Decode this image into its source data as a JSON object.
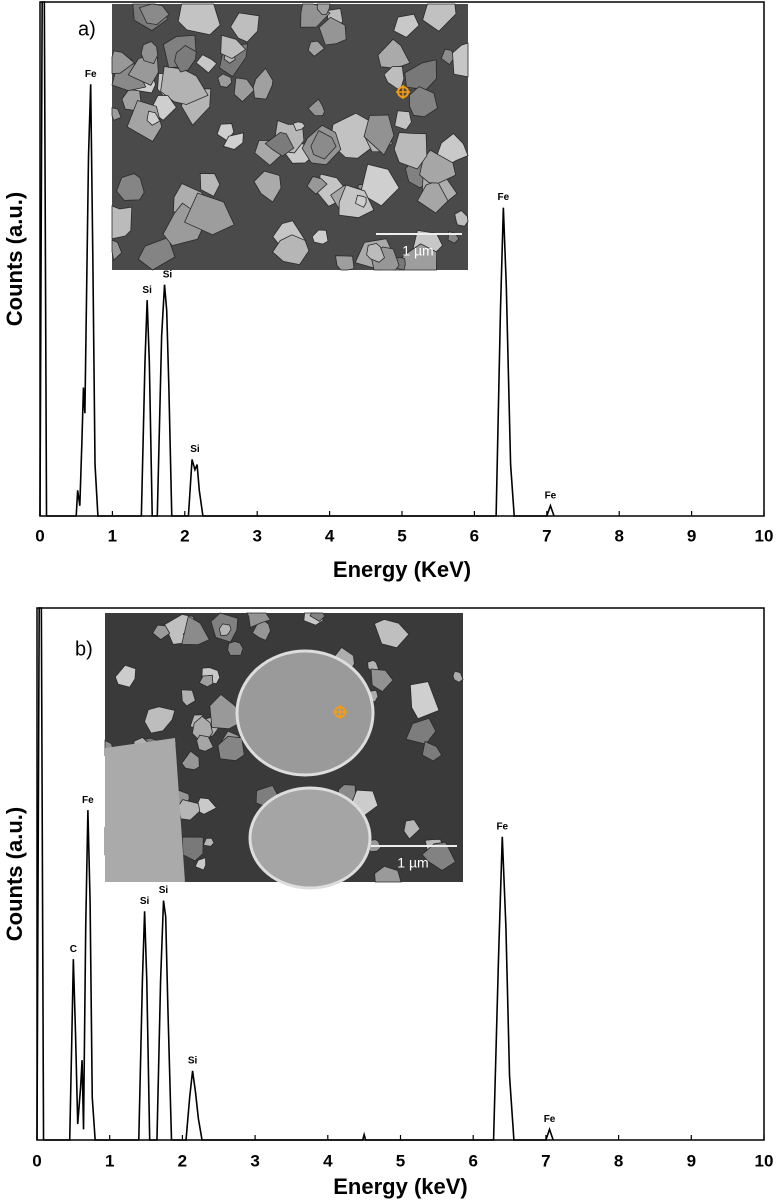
{
  "chart_data": [
    {
      "type": "line",
      "panel_label": "a)",
      "x_label": "Energy (KeV)",
      "y_label": "Counts (a.u.)",
      "color": "#000000",
      "inset": {
        "scale_label": "1 µm"
      },
      "xlim": [
        0,
        10
      ],
      "xticks": [
        0,
        1,
        2,
        3,
        4,
        5,
        6,
        7,
        8,
        9,
        10
      ],
      "ylim": [
        0,
        100
      ],
      "x": [
        0,
        0.03,
        0.06,
        0.09,
        0.5,
        0.52,
        0.55,
        0.58,
        0.6,
        0.62,
        0.64,
        0.67,
        0.7,
        0.73,
        0.76,
        0.8,
        1.4,
        1.45,
        1.48,
        1.51,
        1.55,
        1.62,
        1.68,
        1.72,
        1.75,
        1.78,
        1.82,
        2.05,
        2.1,
        2.14,
        2.17,
        2.2,
        2.25,
        6.3,
        6.36,
        6.4,
        6.44,
        6.5,
        6.55,
        7.0,
        7.05,
        7.1
      ],
      "values": [
        0,
        100,
        100,
        0,
        0,
        5,
        2,
        15,
        25,
        20,
        40,
        70,
        84,
        50,
        10,
        0,
        0,
        30,
        42,
        30,
        0,
        0,
        35,
        45,
        40,
        25,
        0,
        0,
        11,
        9,
        10,
        5,
        0,
        0,
        40,
        60,
        45,
        10,
        0,
        0,
        2,
        0
      ],
      "peak_labels": [
        {
          "text": "Fe",
          "x": 0.7,
          "y": 84
        },
        {
          "text": "Si",
          "x": 1.48,
          "y": 42
        },
        {
          "text": "Si",
          "x": 1.76,
          "y": 45
        },
        {
          "text": "Si",
          "x": 2.14,
          "y": 11
        },
        {
          "text": "Fe",
          "x": 6.4,
          "y": 60
        },
        {
          "text": "Fe",
          "x": 7.05,
          "y": 2
        }
      ]
    },
    {
      "type": "line",
      "panel_label": "b)",
      "x_label": "Energy (keV)",
      "y_label": "Counts (a.u.)",
      "color": "#000000",
      "inset": {
        "scale_label": "1 µm"
      },
      "xlim": [
        0,
        10
      ],
      "xticks": [
        0,
        1,
        2,
        3,
        4,
        5,
        6,
        7,
        8,
        9,
        10
      ],
      "ylim": [
        0,
        100
      ],
      "x": [
        0,
        0.03,
        0.06,
        0.09,
        0.45,
        0.48,
        0.5,
        0.53,
        0.56,
        0.6,
        0.62,
        0.64,
        0.67,
        0.7,
        0.73,
        0.76,
        0.8,
        1.4,
        1.45,
        1.48,
        1.51,
        1.55,
        1.65,
        1.7,
        1.74,
        1.77,
        1.8,
        1.85,
        2.05,
        2.1,
        2.14,
        2.18,
        2.22,
        2.27,
        4.48,
        4.5,
        4.52,
        6.28,
        6.35,
        6.4,
        6.45,
        6.5,
        6.56,
        7.0,
        7.05,
        7.1
      ],
      "values": [
        0,
        100,
        100,
        0,
        0,
        20,
        34,
        20,
        3,
        10,
        15,
        2,
        40,
        62,
        45,
        8,
        0,
        0,
        30,
        43,
        30,
        0,
        0,
        30,
        45,
        42,
        25,
        0,
        0,
        8,
        13,
        9,
        4,
        0,
        0,
        1,
        0,
        0,
        35,
        57,
        40,
        12,
        0,
        0,
        2,
        0
      ],
      "peak_labels": [
        {
          "text": "C",
          "x": 0.5,
          "y": 34
        },
        {
          "text": "Fe",
          "x": 0.7,
          "y": 62
        },
        {
          "text": "Si",
          "x": 1.48,
          "y": 43
        },
        {
          "text": "Si",
          "x": 1.74,
          "y": 45
        },
        {
          "text": "Si",
          "x": 2.14,
          "y": 13
        },
        {
          "text": "Fe",
          "x": 6.4,
          "y": 57
        },
        {
          "text": "Fe",
          "x": 7.05,
          "y": 2
        }
      ]
    }
  ]
}
